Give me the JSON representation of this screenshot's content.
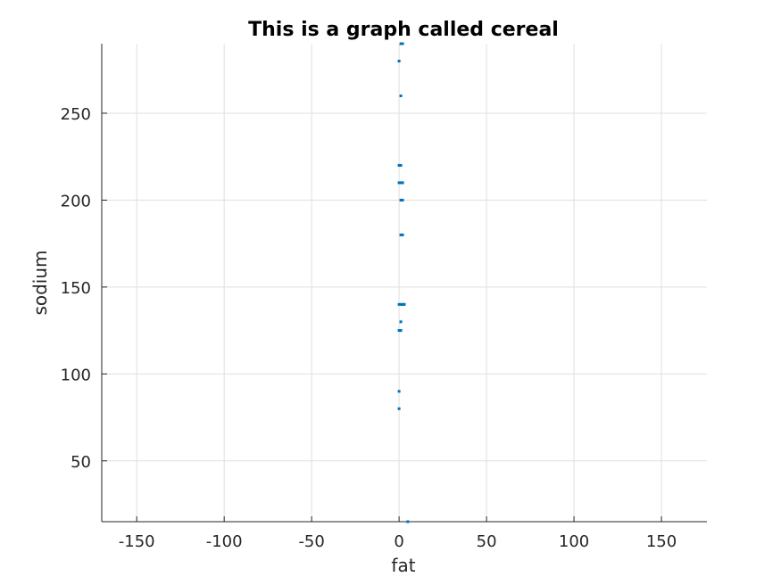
{
  "chart_data": {
    "type": "scatter",
    "title": "This is a graph called cereal",
    "xlabel": "fat",
    "ylabel": "sodium",
    "xlim": [
      -170,
      176
    ],
    "ylim": [
      15,
      290
    ],
    "xticks": [
      -150,
      -100,
      -50,
      0,
      50,
      100,
      150
    ],
    "xtick_labels": [
      "-150",
      "-100",
      "-50",
      "0",
      "50",
      "100",
      "150"
    ],
    "yticks": [
      50,
      100,
      150,
      200,
      250
    ],
    "ytick_labels": [
      "50",
      "100",
      "150",
      "200",
      "250"
    ],
    "grid": true,
    "marker_color": "#0072BD",
    "series": [
      {
        "x": [
          1,
          2,
          0,
          1,
          0,
          1,
          2,
          0,
          1,
          2,
          2,
          1,
          2,
          1,
          2,
          1,
          2,
          3,
          0,
          1,
          0,
          1,
          0,
          0,
          5
        ],
        "y": [
          290,
          290,
          280,
          260,
          220,
          220,
          210,
          210,
          210,
          210,
          200,
          200,
          180,
          180,
          140,
          140,
          140,
          140,
          140,
          130,
          125,
          125,
          90,
          80,
          15
        ]
      }
    ]
  }
}
